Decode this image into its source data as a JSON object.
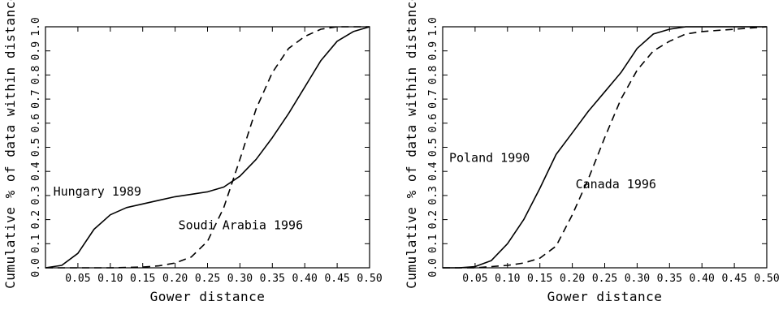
{
  "chart_data": [
    {
      "type": "line",
      "title": "",
      "xlabel": "Gower distance",
      "ylabel": "Cumulative % of data within distance",
      "xlim": [
        0.0,
        0.5
      ],
      "ylim": [
        0.0,
        1.0
      ],
      "xticks": [
        "0.05",
        "0.10",
        "0.15",
        "0.20",
        "0.25",
        "0.30",
        "0.35",
        "0.40",
        "0.45",
        "0.50"
      ],
      "yticks": [
        "0.0",
        "0.1",
        "0.2",
        "0.3",
        "0.4",
        "0.5",
        "0.6",
        "0.7",
        "0.8",
        "0.9",
        "1.0"
      ],
      "grid": false,
      "legend": "none",
      "series": [
        {
          "name": "Hungary 1989",
          "style": "solid",
          "color": "#000000",
          "x": [
            0.0,
            0.025,
            0.05,
            0.075,
            0.1,
            0.125,
            0.15,
            0.175,
            0.2,
            0.225,
            0.25,
            0.275,
            0.3,
            0.325,
            0.35,
            0.375,
            0.4,
            0.425,
            0.45,
            0.475,
            0.5
          ],
          "y": [
            0.0,
            0.01,
            0.06,
            0.16,
            0.22,
            0.25,
            0.265,
            0.28,
            0.295,
            0.305,
            0.315,
            0.335,
            0.38,
            0.45,
            0.54,
            0.64,
            0.75,
            0.86,
            0.94,
            0.98,
            1.0
          ]
        },
        {
          "name": "Soudi Arabia 1996",
          "style": "dashed",
          "color": "#000000",
          "x": [
            0.0,
            0.05,
            0.1,
            0.15,
            0.175,
            0.2,
            0.225,
            0.25,
            0.275,
            0.3,
            0.325,
            0.35,
            0.375,
            0.4,
            0.425,
            0.45,
            0.475,
            0.5
          ],
          "y": [
            0.0,
            0.0,
            0.0,
            0.003,
            0.008,
            0.02,
            0.045,
            0.11,
            0.25,
            0.45,
            0.66,
            0.81,
            0.91,
            0.96,
            0.99,
            1.0,
            1.0,
            1.0
          ]
        }
      ],
      "annotations": [
        {
          "text": "Hungary 1989",
          "x": 0.012,
          "y": 0.3
        },
        {
          "text": "Soudi Arabia 1996",
          "x": 0.205,
          "y": 0.16
        }
      ]
    },
    {
      "type": "line",
      "title": "",
      "xlabel": "Gower distance",
      "ylabel": "Cumulative % of data within distance",
      "xlim": [
        0.0,
        0.5
      ],
      "ylim": [
        0.0,
        1.0
      ],
      "xticks": [
        "0.05",
        "0.10",
        "0.15",
        "0.20",
        "0.25",
        "0.30",
        "0.35",
        "0.40",
        "0.45",
        "0.50"
      ],
      "yticks": [
        "0.0",
        "0.1",
        "0.2",
        "0.3",
        "0.4",
        "0.5",
        "0.6",
        "0.7",
        "0.8",
        "0.9",
        "1.0"
      ],
      "grid": false,
      "legend": "none",
      "series": [
        {
          "name": "Poland 1990",
          "style": "solid",
          "color": "#000000",
          "x": [
            0.0,
            0.025,
            0.05,
            0.075,
            0.1,
            0.125,
            0.15,
            0.175,
            0.2,
            0.225,
            0.25,
            0.275,
            0.3,
            0.325,
            0.35,
            0.375,
            0.4,
            0.5
          ],
          "y": [
            0.0,
            0.0,
            0.005,
            0.03,
            0.1,
            0.2,
            0.33,
            0.47,
            0.56,
            0.65,
            0.73,
            0.81,
            0.91,
            0.97,
            0.99,
            1.0,
            1.0,
            1.0
          ]
        },
        {
          "name": "Canada 1996",
          "style": "dashed",
          "color": "#000000",
          "x": [
            0.0,
            0.05,
            0.075,
            0.1,
            0.125,
            0.15,
            0.175,
            0.2,
            0.225,
            0.25,
            0.275,
            0.3,
            0.325,
            0.35,
            0.375,
            0.4,
            0.45,
            0.5
          ],
          "y": [
            0.0,
            0.0,
            0.005,
            0.01,
            0.02,
            0.04,
            0.09,
            0.22,
            0.37,
            0.54,
            0.7,
            0.82,
            0.9,
            0.94,
            0.97,
            0.98,
            0.99,
            1.0
          ]
        }
      ],
      "annotations": [
        {
          "text": "Poland 1990",
          "x": 0.01,
          "y": 0.44
        },
        {
          "text": "Canada 1996",
          "x": 0.205,
          "y": 0.33
        }
      ]
    }
  ]
}
